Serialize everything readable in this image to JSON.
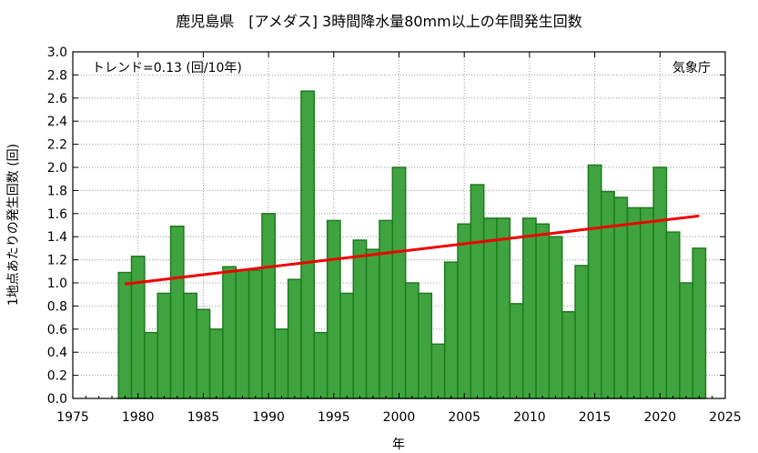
{
  "chart_data": {
    "type": "bar",
    "title": "鹿児島県　[アメダス] 3時間降水量80mm以上の年間発生回数",
    "xlabel": "年",
    "ylabel": "1地点あたりの発生回数 (回)",
    "trend_label": "トレンド=0.13 (回/10年)",
    "source": "気象庁",
    "xlim": [
      1975,
      2025
    ],
    "ylim": [
      0,
      3.0
    ],
    "x_ticks": [
      1975,
      1980,
      1985,
      1990,
      1995,
      2000,
      2005,
      2010,
      2015,
      2020,
      2025
    ],
    "y_ticks": [
      0.0,
      0.2,
      0.4,
      0.6,
      0.8,
      1.0,
      1.2,
      1.4,
      1.6,
      1.8,
      2.0,
      2.2,
      2.4,
      2.6,
      2.8,
      3.0
    ],
    "grid": true,
    "bar_color": "#3fa33f",
    "bar_edge_color": "#1f7a1f",
    "trend_color": "#ee0000",
    "years": [
      1979,
      1980,
      1981,
      1982,
      1983,
      1984,
      1985,
      1986,
      1987,
      1988,
      1989,
      1990,
      1991,
      1992,
      1993,
      1994,
      1995,
      1996,
      1997,
      1998,
      1999,
      2000,
      2001,
      2002,
      2003,
      2004,
      2005,
      2006,
      2007,
      2008,
      2009,
      2010,
      2011,
      2012,
      2013,
      2014,
      2015,
      2016,
      2017,
      2018,
      2019,
      2020,
      2021,
      2022,
      2023
    ],
    "values": [
      1.09,
      1.23,
      0.57,
      0.91,
      1.49,
      0.91,
      0.77,
      0.6,
      1.14,
      1.11,
      1.11,
      1.6,
      0.6,
      1.03,
      2.66,
      0.57,
      1.54,
      0.91,
      1.37,
      1.29,
      1.54,
      2.0,
      1.0,
      0.91,
      0.47,
      1.18,
      1.51,
      1.85,
      1.56,
      1.56,
      0.82,
      1.56,
      1.51,
      1.4,
      0.75,
      1.15,
      2.02,
      1.79,
      1.74,
      1.65,
      1.65,
      2.0,
      1.44,
      1.0,
      1.3
    ],
    "trend": {
      "x": [
        1979,
        2023
      ],
      "y": [
        0.99,
        1.58
      ]
    }
  }
}
